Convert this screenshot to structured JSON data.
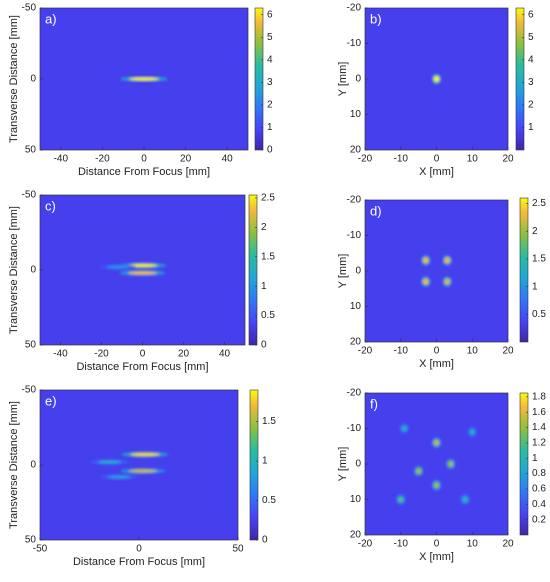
{
  "chart_data": [
    {
      "type": "heatmap",
      "panel_label": "a)",
      "xlabel": "Distance From Focus [mm]",
      "ylabel": "Transverse Distance [mm]",
      "xlim": [
        -50,
        50
      ],
      "xticks": [
        -40,
        -20,
        0,
        20,
        40
      ],
      "ylim": [
        -50,
        50
      ],
      "yticks": [
        -50,
        0,
        50
      ],
      "y_direction": "reverse",
      "clim": [
        0,
        6.3
      ],
      "cticks": [
        0,
        1,
        2,
        3,
        4,
        5,
        6
      ],
      "colormap": "parula",
      "spot_x": [
        0
      ],
      "spot_y": [
        0
      ],
      "spot_values": [
        6.2
      ]
    },
    {
      "type": "heatmap",
      "panel_label": "b)",
      "xlabel": "X [mm]",
      "ylabel": "Y [mm]",
      "xlim": [
        -20,
        20
      ],
      "xticks": [
        -20,
        -10,
        0,
        10,
        20
      ],
      "ylim": [
        -20,
        20
      ],
      "yticks": [
        -20,
        -10,
        0,
        10,
        20
      ],
      "y_direction": "reverse",
      "clim": [
        0,
        6.3
      ],
      "cticks": [
        1,
        2,
        3,
        4,
        5,
        6
      ],
      "colormap": "parula",
      "spot_x": [
        0
      ],
      "spot_y": [
        0
      ],
      "spot_values": [
        6.2
      ]
    },
    {
      "type": "heatmap",
      "panel_label": "c)",
      "xlabel": "Distance From Focus [mm]",
      "ylabel": "Transverse Distance [mm]",
      "xlim": [
        -50,
        50
      ],
      "xticks": [
        -40,
        -20,
        0,
        20,
        40
      ],
      "ylim": [
        -50,
        50
      ],
      "yticks": [
        -50,
        0,
        50
      ],
      "y_direction": "reverse",
      "clim": [
        0,
        2.55
      ],
      "cticks": [
        0,
        0.5,
        1,
        1.5,
        2,
        2.5
      ],
      "colormap": "parula",
      "spot_x": [
        0,
        0,
        -12
      ],
      "spot_y": [
        -3,
        2,
        -2
      ],
      "spot_values": [
        2.5,
        2.3,
        1.0
      ]
    },
    {
      "type": "heatmap",
      "panel_label": "d)",
      "xlabel": "X [mm]",
      "ylabel": "Y [mm]",
      "xlim": [
        -20,
        20
      ],
      "xticks": [
        -20,
        -10,
        0,
        10,
        20
      ],
      "ylim": [
        -20,
        20
      ],
      "yticks": [
        -20,
        -10,
        0,
        10,
        20
      ],
      "y_direction": "reverse",
      "clim": [
        0,
        2.6
      ],
      "cticks": [
        0.5,
        1,
        1.5,
        2,
        2.5
      ],
      "colormap": "parula",
      "spot_x": [
        -3,
        3,
        -3,
        3
      ],
      "spot_y": [
        -3,
        -3,
        3,
        3
      ],
      "spot_values": [
        2.3,
        2.3,
        2.3,
        2.2
      ]
    },
    {
      "type": "heatmap",
      "panel_label": "e)",
      "xlabel": "Distance From Focus [mm]",
      "ylabel": "Transverse Distance [mm]",
      "xlim": [
        -50,
        50
      ],
      "xticks": [
        -50,
        0,
        50
      ],
      "ylim": [
        -50,
        50
      ],
      "yticks": [
        -50,
        0,
        50
      ],
      "y_direction": "reverse",
      "clim": [
        0,
        1.9
      ],
      "cticks": [
        0,
        0.5,
        1,
        1.5
      ],
      "colormap": "parula",
      "spot_x": [
        3,
        2,
        -15,
        -10
      ],
      "spot_y": [
        -7,
        4,
        -2,
        8
      ],
      "spot_values": [
        1.8,
        1.6,
        0.9,
        0.8
      ]
    },
    {
      "type": "heatmap",
      "panel_label": "f)",
      "xlabel": "X [mm]",
      "ylabel": "Y [mm]",
      "xlim": [
        -20,
        20
      ],
      "xticks": [
        -20,
        -10,
        0,
        10,
        20
      ],
      "ylim": [
        -20,
        20
      ],
      "yticks": [
        -20,
        -10,
        0,
        10,
        20
      ],
      "y_direction": "reverse",
      "clim": [
        0,
        1.85
      ],
      "cticks": [
        0.2,
        0.4,
        0.6,
        0.8,
        1,
        1.2,
        1.4,
        1.6,
        1.8
      ],
      "colormap": "parula",
      "spot_x": [
        0,
        -5,
        4,
        0,
        -10,
        8,
        -9,
        10
      ],
      "spot_y": [
        -6,
        2,
        0,
        6,
        10,
        10,
        -10,
        -9
      ],
      "spot_values": [
        1.5,
        1.4,
        1.4,
        1.4,
        1.2,
        1.0,
        0.9,
        0.9
      ]
    }
  ]
}
